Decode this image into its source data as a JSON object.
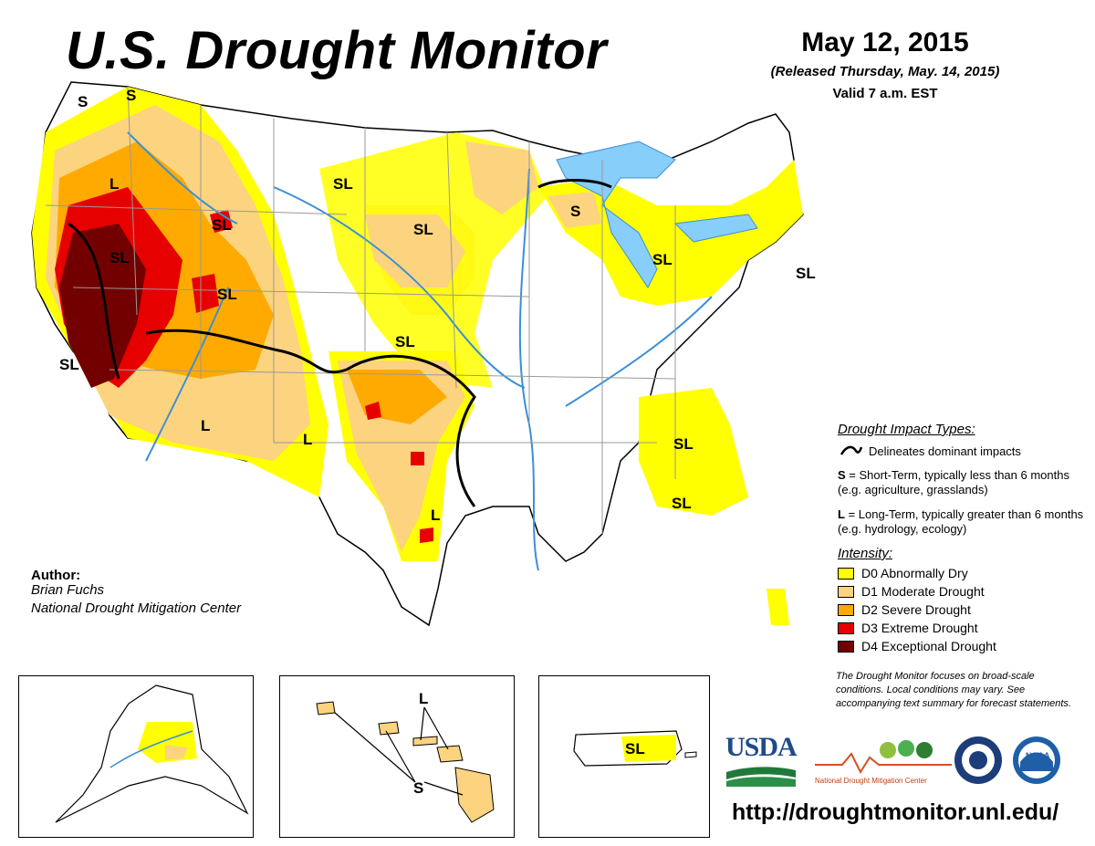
{
  "header": {
    "title": "U.S. Drought Monitor",
    "date": "May 12, 2015",
    "released": "(Released Thursday, May. 14, 2015)",
    "valid": "Valid 7 a.m. EST"
  },
  "author": {
    "heading": "Author:",
    "name": "Brian Fuchs",
    "org": "National Drought Mitigation Center"
  },
  "impact_types": {
    "title": "Drought Impact Types:",
    "delineates": "Delineates dominant impacts",
    "short_key": "S",
    "short_desc": "= Short-Term, typically less than 6 months (e.g. agriculture, grasslands)",
    "long_key": "L",
    "long_desc": "= Long-Term, typically greater than 6 months (e.g. hydrology, ecology)"
  },
  "intensity": {
    "title": "Intensity:",
    "levels": [
      {
        "label": "D0 Abnormally Dry",
        "color": "#ffff00"
      },
      {
        "label": "D1 Moderate Drought",
        "color": "#fcd37f"
      },
      {
        "label": "D2 Severe Drought",
        "color": "#ffaa00"
      },
      {
        "label": "D3 Extreme Drought",
        "color": "#e60000"
      },
      {
        "label": "D4 Exceptional Drought",
        "color": "#730000"
      }
    ]
  },
  "map_labels": {
    "s_nw1": "S",
    "s_nw2": "S",
    "l_or": "L",
    "sl_mt": "SL",
    "sl_id": "SL",
    "sl_nv": "SL",
    "sl_ut": "SL",
    "sl_ca": "SL",
    "l_az": "L",
    "l_nm": "L",
    "sl_ks": "SL",
    "l_tx": "L",
    "sl_sd": "SL",
    "sl_nd": "SL",
    "s_mn": "S",
    "sl_mi": "SL",
    "sl_ny": "SL",
    "sl_tn": "SL",
    "sl_ga": "SL"
  },
  "insets": {
    "hawaii_l": "L",
    "hawaii_s": "S",
    "puerto_rico_sl": "SL"
  },
  "note": "The Drought Monitor focuses on broad-scale conditions. Local conditions may vary. See accompanying text summary for forecast statements.",
  "logos": {
    "usda": "USDA",
    "ndmc": "National Drought Mitigation Center",
    "noaa": "NOAA"
  },
  "url": "http://droughtmonitor.unl.edu/",
  "colors": {
    "water": "#87cefa",
    "rivers": "#3b8fd6",
    "borders": "#999999"
  }
}
